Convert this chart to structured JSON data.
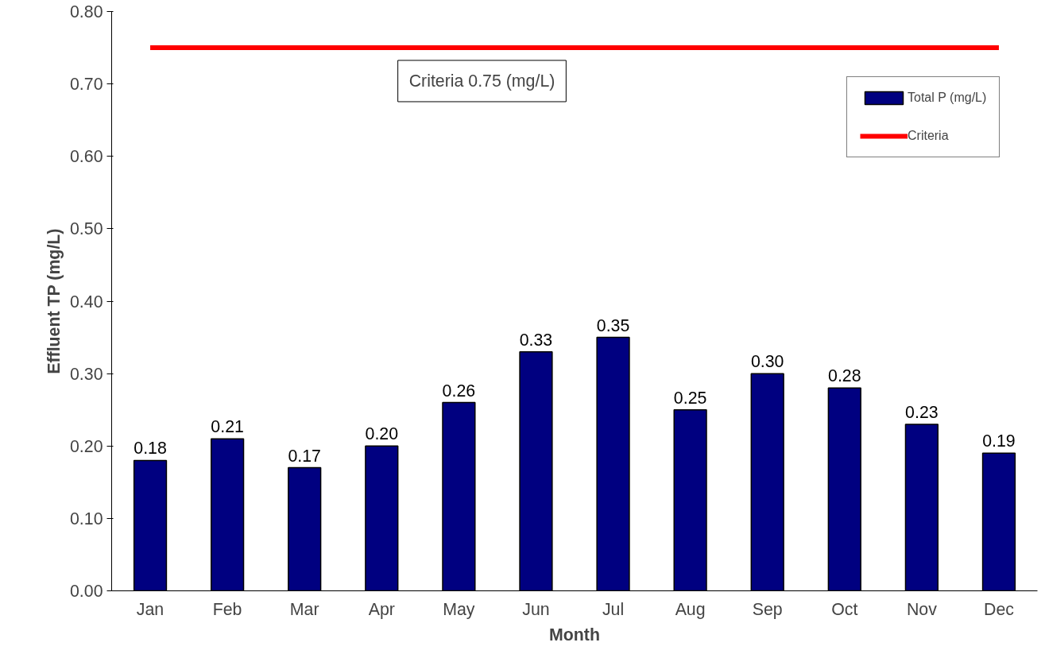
{
  "chart_data": {
    "type": "bar",
    "xlabel": "Month",
    "ylabel": "Effluent TP (mg/L)",
    "categories": [
      "Jan",
      "Feb",
      "Mar",
      "Apr",
      "May",
      "Jun",
      "Jul",
      "Aug",
      "Sep",
      "Oct",
      "Nov",
      "Dec"
    ],
    "series": [
      {
        "name": "Total P (mg/L)",
        "color": "#000080",
        "values": [
          0.18,
          0.21,
          0.17,
          0.2,
          0.26,
          0.33,
          0.35,
          0.25,
          0.3,
          0.28,
          0.23,
          0.19
        ],
        "value_labels": [
          "0.18",
          "0.21",
          "0.17",
          "0.20",
          "0.26",
          "0.33",
          "0.35",
          "0.25",
          "0.30",
          "0.28",
          "0.23",
          "0.19"
        ]
      },
      {
        "name": "Criteria",
        "type": "line",
        "color": "#ff0000",
        "values": [
          0.75,
          0.75,
          0.75,
          0.75,
          0.75,
          0.75,
          0.75,
          0.75,
          0.75,
          0.75,
          0.75,
          0.75
        ]
      }
    ],
    "annotations": [
      "Criteria 0.75 (mg/L)"
    ],
    "ylim": [
      0,
      0.8
    ],
    "yticks": [
      {
        "value": 0,
        "label": "0.00"
      },
      {
        "value": 0.1,
        "label": "0.10"
      },
      {
        "value": 0.2,
        "label": "0.20"
      },
      {
        "value": 0.3,
        "label": "0.30"
      },
      {
        "value": 0.4,
        "label": "0.40"
      },
      {
        "value": 0.5,
        "label": "0.50"
      },
      {
        "value": 0.6,
        "label": "0.60"
      },
      {
        "value": 0.7,
        "label": "0.70"
      },
      {
        "value": 0.8,
        "label": "0.80"
      }
    ],
    "grid": false,
    "legend": "top right"
  }
}
